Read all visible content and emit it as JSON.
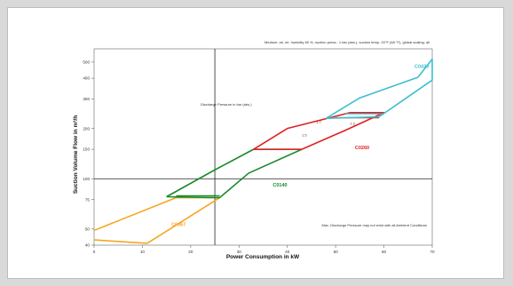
{
  "chart_data": {
    "type": "line",
    "title": "Medium: air, rel. humidity 60 %, suction press.: 1 bar (abs.), suction temp. 20°F (68 °F), global scaling: all",
    "xlabel": "Power Consumption in kW",
    "ylabel": "Suction Volume Flow in m³/h",
    "xlim": [
      0,
      70
    ],
    "ylim": [
      40,
      600
    ],
    "log_y": true,
    "grid": false,
    "x_ticks": [
      0,
      10,
      20,
      30,
      40,
      50,
      60,
      70
    ],
    "y_ticks": [
      40,
      50,
      75,
      100,
      150,
      200,
      300,
      400,
      500
    ],
    "reference_lines": {
      "x": 25,
      "y": 100
    },
    "annotations": {
      "discharge_label": "Discharge Pressure in bar (abs.)",
      "bottom_note": "Max. Discharge Pressure may not exist with all Ambient Conditions"
    },
    "point_labels": [
      "1.5",
      "1.7",
      "1.2"
    ],
    "series": [
      {
        "name": "C0067",
        "color": "#f5a623",
        "points": [
          [
            0,
            43
          ],
          [
            11,
            41
          ],
          [
            17,
            77
          ],
          [
            26,
            77
          ],
          [
            13,
            58
          ],
          [
            11,
            41
          ]
        ],
        "outline": [
          [
            0,
            43
          ],
          [
            11,
            41
          ],
          [
            26,
            77
          ],
          [
            17,
            77
          ],
          [
            0,
            49
          ]
        ]
      },
      {
        "name": "C0140",
        "color": "#1a8a2a",
        "outline": [
          [
            15,
            78
          ],
          [
            25,
            113
          ],
          [
            33,
            150
          ],
          [
            43,
            150
          ],
          [
            32,
            108
          ],
          [
            26,
            77
          ],
          [
            15,
            78
          ]
        ],
        "extra": [
          [
            17,
            79
          ],
          [
            26,
            79
          ]
        ]
      },
      {
        "name": "C0260",
        "color": "#e02020",
        "outline": [
          [
            33,
            150
          ],
          [
            40,
            200
          ],
          [
            53,
            249
          ],
          [
            60,
            249
          ],
          [
            52,
            195
          ],
          [
            43,
            150
          ],
          [
            33,
            150
          ]
        ],
        "extra": [
          [
            50,
            232
          ],
          [
            59,
            232
          ]
        ]
      },
      {
        "name": "C0420",
        "color": "#3cbfcf",
        "outline": [
          [
            48,
            230
          ],
          [
            55,
            305
          ],
          [
            67,
            405
          ],
          [
            80,
            520
          ],
          [
            91,
            520
          ],
          [
            79,
            390
          ],
          [
            59,
            235
          ],
          [
            48,
            230
          ]
        ],
        "extra": [
          [
            52,
            245
          ],
          [
            60,
            245
          ]
        ]
      }
    ]
  }
}
